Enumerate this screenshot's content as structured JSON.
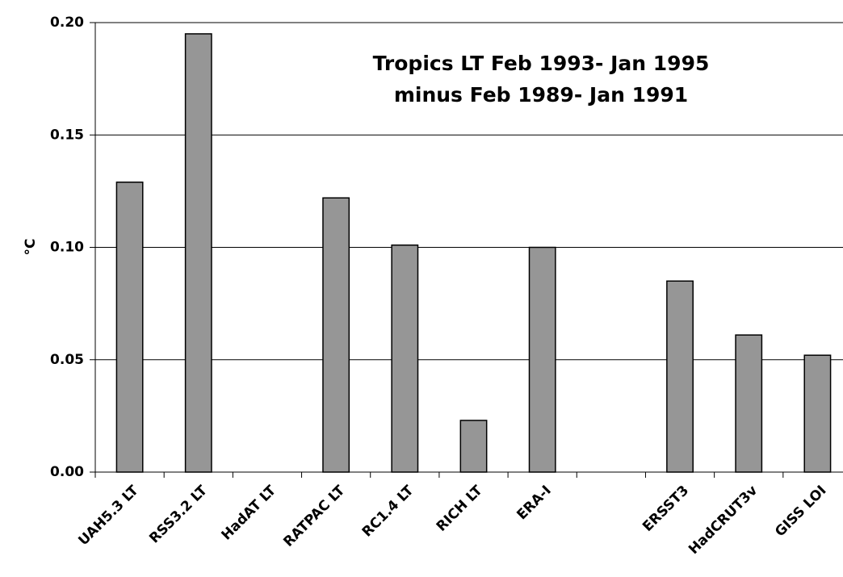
{
  "chart_data": {
    "type": "bar",
    "title": [
      "Tropics LT Feb 1993- Jan 1995",
      "minus Feb 1989- Jan 1991"
    ],
    "y_label": "°C",
    "categories": [
      "UAH5.3 LT",
      "RSS3.2 LT",
      "HadAT LT",
      "RATPAC LT",
      "RC1.4 LT",
      "RICH LT",
      "ERA-I",
      null,
      "ERSST3",
      "HadCRUT3v",
      "GISS LOI"
    ],
    "values": [
      0.129,
      0.195,
      null,
      0.122,
      0.101,
      0.023,
      0.1,
      null,
      0.085,
      0.061,
      0.052
    ],
    "color": "#969696",
    "ylim": [
      0,
      0.2
    ],
    "yticks": [
      {
        "value": 0,
        "label": "0.00"
      },
      {
        "value": 0.05,
        "label": "0.05"
      },
      {
        "value": 0.1,
        "label": "0.10"
      },
      {
        "value": 0.15,
        "label": "0.15"
      },
      {
        "value": 0.2,
        "label": "0.20"
      }
    ],
    "grid": true
  }
}
